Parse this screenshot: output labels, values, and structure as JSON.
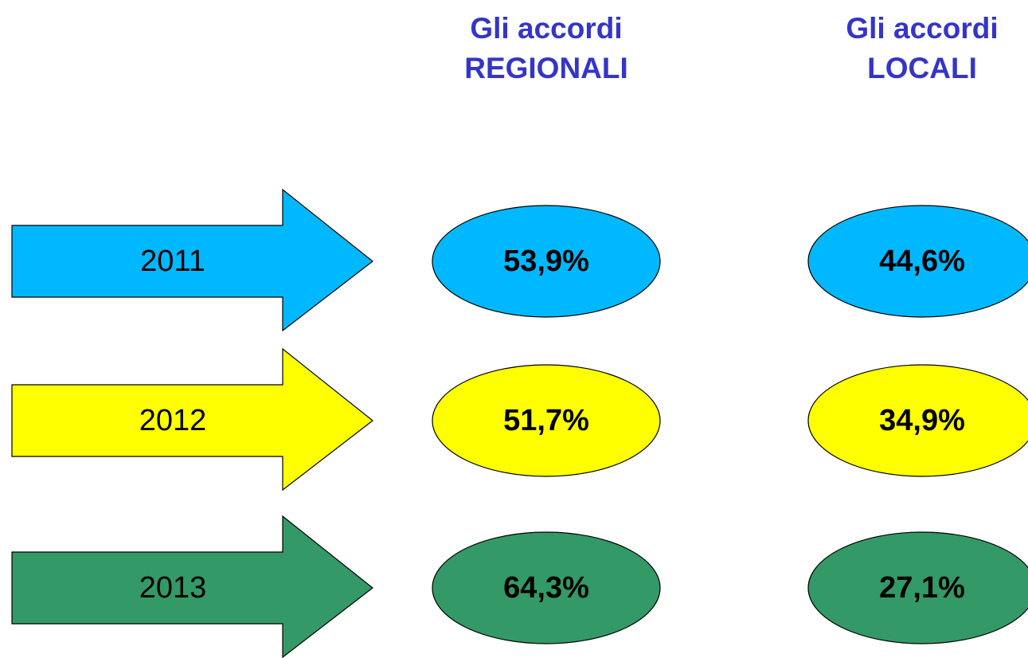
{
  "headers": [
    {
      "line1": "Gli accordi",
      "line2": "REGIONALI"
    },
    {
      "line1": "Gli accordi",
      "line2": "LOCALI"
    }
  ],
  "rows": [
    {
      "year": "2011",
      "color": "#00b8ff",
      "values": [
        "53,9%",
        "44,6%"
      ]
    },
    {
      "year": "2012",
      "color": "#ffff00",
      "values": [
        "51,7%",
        "34,9%"
      ]
    },
    {
      "year": "2013",
      "color": "#339966",
      "values": [
        "64,3%",
        "27,1%"
      ]
    }
  ]
}
